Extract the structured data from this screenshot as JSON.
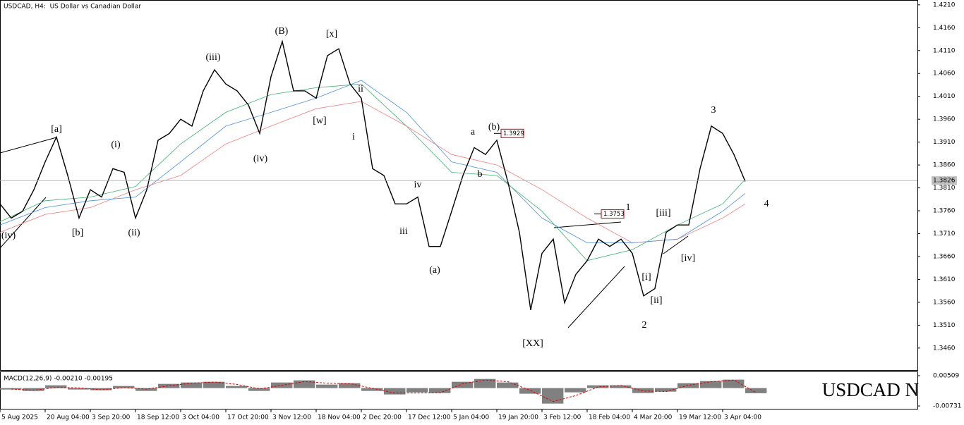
{
  "chart_data": [
    {
      "type": "line",
      "title": "USDCAD, H4:  US Dollar vs Canadian Dollar",
      "xlim": [
        0,
        20.3125
      ],
      "ylim": [
        1.3412,
        1.4219
      ],
      "yticks": [
        {
          "value": 1.421,
          "label": "1.4210"
        },
        {
          "value": 1.416,
          "label": "1.4160"
        },
        {
          "value": 1.411,
          "label": "1.4110"
        },
        {
          "value": 1.406,
          "label": "1.4060"
        },
        {
          "value": 1.401,
          "label": "1.4010"
        },
        {
          "value": 1.396,
          "label": "1.3960"
        },
        {
          "value": 1.391,
          "label": "1.3910"
        },
        {
          "value": 1.386,
          "label": "1.3860"
        },
        {
          "value": 1.381,
          "label": "1.3810"
        },
        {
          "value": 1.376,
          "label": "1.3760"
        },
        {
          "value": 1.371,
          "label": "1.3710"
        },
        {
          "value": 1.366,
          "label": "1.3660"
        },
        {
          "value": 1.361,
          "label": "1.3610"
        },
        {
          "value": 1.356,
          "label": "1.3560"
        },
        {
          "value": 1.351,
          "label": "1.3510"
        },
        {
          "value": 1.346,
          "label": "1.3460"
        }
      ],
      "series": [
        {
          "color": "#000000",
          "x": [
            0,
            0.25,
            0.5,
            0.75,
            1,
            1.25,
            1.5,
            1.75,
            2,
            2.25,
            2.5,
            2.75,
            3,
            3.25,
            3.5,
            3.75,
            4,
            4.25,
            4.5,
            4.75,
            5,
            5.25,
            5.5,
            5.75,
            6,
            6.25,
            6.5,
            6.75,
            7,
            7.25,
            7.5,
            7.75,
            8,
            8.25,
            8.5,
            8.75,
            9,
            9.25,
            9.5,
            9.75,
            10,
            10.25,
            10.5,
            10.75,
            11,
            11.25,
            11.5,
            11.75,
            12,
            12.25,
            12.5,
            12.75,
            13,
            13.25,
            13.5,
            13.75,
            14,
            14.25,
            14.5,
            14.75,
            15,
            15.25,
            15.5,
            15.75,
            16,
            16.25,
            16.5
          ],
          "values": [
            1.3775,
            1.3744,
            1.3759,
            1.3806,
            1.3867,
            1.3921,
            1.3837,
            1.3744,
            1.3806,
            1.379,
            1.3852,
            1.3844,
            1.3744,
            1.3806,
            1.3914,
            1.3929,
            1.396,
            1.3945,
            1.4022,
            1.4068,
            1.4037,
            1.4022,
            1.3991,
            1.3929,
            1.4053,
            1.413,
            1.4022,
            1.4022,
            1.4006,
            1.4099,
            1.4114,
            1.4037,
            1.4006,
            1.3852,
            1.3837,
            1.3775,
            1.3775,
            1.379,
            1.3682,
            1.3682,
            1.3759,
            1.3837,
            1.3898,
            1.3883,
            1.3914,
            1.3821,
            1.3713,
            1.3543,
            1.3667,
            1.3698,
            1.3559,
            1.3621,
            1.3651,
            1.3698,
            1.3682,
            1.3698,
            1.3667,
            1.3574,
            1.359,
            1.3713,
            1.3729,
            1.3729,
            1.3852,
            1.3945,
            1.3929,
            1.3883,
            1.3824
          ]
        },
        {
          "color": "#3cb371",
          "x": [
            0,
            1,
            2,
            3,
            4,
            5,
            6,
            7,
            8,
            9,
            10,
            11,
            12,
            13,
            14,
            15,
            16,
            16.5
          ],
          "values": [
            1.3736,
            1.3782,
            1.379,
            1.3813,
            1.3906,
            1.3975,
            1.4014,
            1.4029,
            1.4037,
            1.3945,
            1.3844,
            1.3837,
            1.3759,
            1.3651,
            1.3675,
            1.3729,
            1.3775,
            1.3829
          ]
        },
        {
          "color": "#4a90e2",
          "x": [
            0,
            1,
            2,
            3,
            4,
            5,
            6,
            7,
            8,
            9,
            10,
            11,
            12,
            13,
            14,
            15,
            16,
            16.5
          ],
          "values": [
            1.3729,
            1.3767,
            1.3782,
            1.379,
            1.3867,
            1.3945,
            1.3975,
            1.4006,
            1.4045,
            1.3975,
            1.3867,
            1.3844,
            1.3744,
            1.369,
            1.369,
            1.3698,
            1.3759,
            1.3798
          ]
        },
        {
          "color": "#f08080",
          "x": [
            0,
            1,
            2,
            3,
            4,
            5,
            6,
            7,
            8,
            9,
            10,
            11,
            12,
            13,
            14,
            15,
            16,
            16.5
          ],
          "values": [
            1.3713,
            1.3752,
            1.3767,
            1.3806,
            1.3837,
            1.3906,
            1.3945,
            1.3983,
            1.3999,
            1.3945,
            1.3883,
            1.386,
            1.3806,
            1.3744,
            1.369,
            1.3698,
            1.3744,
            1.3775
          ]
        }
      ],
      "current_price": {
        "value": 1.3826,
        "label": "1.3826"
      },
      "price_tags": [
        {
          "value": 1.3929,
          "label": "1.3929"
        },
        {
          "value": 1.3753,
          "label": "1.3753"
        }
      ],
      "annotations": [
        "[a]",
        "[b]",
        "(iv)",
        "(i)",
        "(ii)",
        "(iii)",
        "(iv)",
        "(B)",
        "[x]",
        "[w]",
        "ii",
        "i",
        "iv",
        "iii",
        "(a)",
        "a",
        "(b)",
        "b",
        "[XX]",
        "1",
        "2",
        "3",
        "4",
        "[iii]",
        "[iv]",
        "[i]",
        "[ii]"
      ]
    },
    {
      "type": "bar",
      "title": "MACD(12,26,9) -0.00210 -0.00195",
      "watermark": "USDCAD N",
      "xlim": [
        0,
        20.3125
      ],
      "ylim": [
        -0.00846,
        0.00653
      ],
      "yticks": [
        0.00509,
        -0.00731
      ],
      "xticks": [
        {
          "value": 0,
          "label": "5 Aug 2025"
        },
        {
          "value": 1,
          "label": "20 Aug 04:00"
        },
        {
          "value": 2,
          "label": "3 Sep 20:00"
        },
        {
          "value": 3,
          "label": "18 Sep 12:00"
        },
        {
          "value": 4,
          "label": "3 Oct 04:00"
        },
        {
          "value": 5,
          "label": "17 Oct 20:00"
        },
        {
          "value": 6,
          "label": "3 Nov 12:00"
        },
        {
          "value": 7,
          "label": "18 Nov 04:00"
        },
        {
          "value": 8,
          "label": "2 Dec 20:00"
        },
        {
          "value": 9,
          "label": "17 Dec 12:00"
        },
        {
          "value": 10,
          "label": "5 Jan 04:00"
        },
        {
          "value": 11,
          "label": "19 Jan 20:00"
        },
        {
          "value": 12,
          "label": "3 Feb 12:00"
        },
        {
          "value": 13,
          "label": "18 Feb 04:00"
        },
        {
          "value": 14,
          "label": "4 Mar 20:00"
        },
        {
          "value": 15,
          "label": "19 Mar 12:00"
        },
        {
          "value": 16,
          "label": "3 Apr 04:00"
        }
      ],
      "x": [
        0,
        0.5,
        1,
        1.5,
        2,
        2.5,
        3,
        3.5,
        4,
        4.5,
        5,
        5.5,
        6,
        6.5,
        7,
        7.5,
        8,
        8.5,
        9,
        9.5,
        10,
        10.5,
        11,
        11.5,
        12,
        12.5,
        13,
        13.5,
        14,
        14.5,
        15,
        15.5,
        16,
        16.5
      ],
      "series": [
        {
          "type": "bar",
          "color": "#808080",
          "values": [
            -0.00058,
            -0.00115,
            0.00115,
            -0.00058,
            -0.00086,
            0.00086,
            -0.00115,
            0.00173,
            0.0023,
            0.00259,
            0.00086,
            -0.00115,
            0.0023,
            0.00317,
            0.00144,
            0.00202,
            -0.00115,
            -0.00259,
            -0.00173,
            -0.00202,
            0.00259,
            0.00374,
            0.0023,
            -0.0023,
            -0.00634,
            -0.00173,
            0.00115,
            0.00115,
            -0.00202,
            -0.00144,
            0.00202,
            0.00288,
            0.00346,
            -0.0021
          ]
        },
        {
          "type": "line",
          "color": "#e00000",
          "values": [
            -0.0004,
            -0.0009,
            0.0003,
            0.0001,
            -0.0007,
            0.0002,
            -0.0004,
            0.001,
            0.002,
            0.0025,
            0.0015,
            -0.0003,
            0.0012,
            0.0027,
            0.002,
            0.0018,
            -0.0001,
            -0.002,
            -0.002,
            -0.0019,
            0.0018,
            0.0033,
            0.0026,
            -0.001,
            -0.0055,
            -0.003,
            0.0005,
            0.0011,
            -0.0012,
            -0.0014,
            0.0012,
            0.0026,
            0.0033,
            -0.00195
          ]
        }
      ]
    }
  ]
}
